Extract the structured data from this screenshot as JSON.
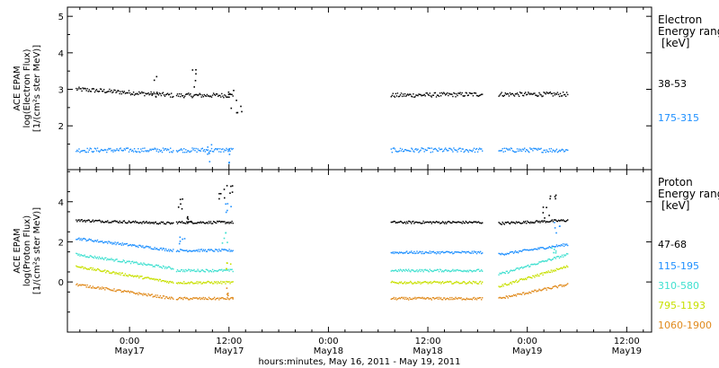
{
  "chart_data": [
    {
      "type": "scatter",
      "panel": "electron",
      "ylabel": [
        "ACE EPAM",
        "log(Electron Flux)",
        "[1/(cm²s ster MeV)]"
      ],
      "ylim": [
        0.8,
        5.25
      ],
      "yticks": [
        2,
        3,
        4,
        5
      ],
      "legend_title": [
        "Electron",
        "Energy ranges",
        "[keV]"
      ],
      "series": [
        {
          "name": "38-53",
          "color": "#000000",
          "segments": [
            [
              -6.5,
              5.2,
              3.02,
              2.85
            ],
            [
              5.6,
              12.4,
              2.85,
              2.85
            ],
            [
              31.5,
              42.5,
              2.85,
              2.88
            ],
            [
              44.5,
              52.8,
              2.88,
              2.88
            ]
          ],
          "spikes": [
            [
              3.0,
              3.4
            ],
            [
              7.8,
              3.6
            ],
            [
              12.2,
              3.05
            ],
            [
              13.2,
              2.8
            ]
          ]
        },
        {
          "name": "175-315",
          "color": "#1e90ff",
          "segments": [
            [
              -6.5,
              5.2,
              1.35,
              1.35
            ],
            [
              5.6,
              12.4,
              1.35,
              1.35
            ],
            [
              31.5,
              42.5,
              1.35,
              1.35
            ],
            [
              44.5,
              52.8,
              1.35,
              1.35
            ]
          ],
          "spikes": [
            [
              9.5,
              1.6
            ],
            [
              12.3,
              1.55
            ]
          ]
        }
      ]
    },
    {
      "type": "scatter",
      "panel": "proton",
      "ylabel": [
        "ACE EPAM",
        "log(Proton Flux)",
        "[1/(cm²s ster MeV)]"
      ],
      "ylim": [
        -2.5,
        5.6
      ],
      "yticks": [
        0,
        2,
        4
      ],
      "legend_title": [
        "Proton",
        "Energy ranges",
        "[keV]"
      ],
      "series": [
        {
          "name": "47-68",
          "color": "#000000",
          "segments": [
            [
              -6.5,
              5.2,
              3.1,
              2.95
            ],
            [
              5.6,
              12.4,
              3.0,
              3.0
            ],
            [
              31.5,
              42.5,
              3.0,
              3.0
            ],
            [
              44.5,
              52.8,
              2.95,
              3.1
            ]
          ],
          "spikes": [
            [
              6.0,
              4.2
            ],
            [
              7.0,
              3.4
            ],
            [
              11.0,
              4.7
            ],
            [
              12.0,
              5.0
            ],
            [
              51.0,
              4.5
            ],
            [
              50.2,
              3.8
            ]
          ]
        },
        {
          "name": "115-195",
          "color": "#1e90ff",
          "segments": [
            [
              -6.5,
              5.2,
              2.2,
              1.6
            ],
            [
              5.6,
              12.4,
              1.6,
              1.6
            ],
            [
              31.5,
              42.5,
              1.5,
              1.5
            ],
            [
              44.5,
              52.8,
              1.4,
              1.9
            ]
          ],
          "spikes": [
            [
              6.2,
              2.4
            ],
            [
              11.8,
              4.0
            ],
            [
              51.5,
              3.0
            ]
          ]
        },
        {
          "name": "310-580",
          "color": "#40e0d0",
          "segments": [
            [
              -6.5,
              5.2,
              1.4,
              0.7
            ],
            [
              5.6,
              12.4,
              0.6,
              0.6
            ],
            [
              31.5,
              42.5,
              0.6,
              0.6
            ],
            [
              44.5,
              52.8,
              0.4,
              1.4
            ]
          ],
          "spikes": [
            [
              11.5,
              2.5
            ],
            [
              51.2,
              1.8
            ]
          ]
        },
        {
          "name": "795-1193",
          "color": "#c8e000",
          "segments": [
            [
              -6.5,
              5.2,
              0.8,
              0.0
            ],
            [
              5.6,
              12.4,
              0.0,
              0.0
            ],
            [
              31.5,
              42.5,
              0.0,
              0.0
            ],
            [
              44.5,
              52.8,
              -0.2,
              0.8
            ]
          ],
          "spikes": [
            [
              11.8,
              1.0
            ]
          ]
        },
        {
          "name": "1060-1900",
          "color": "#e08a1c",
          "segments": [
            [
              -6.5,
              5.2,
              -0.1,
              -0.8
            ],
            [
              5.6,
              12.4,
              -0.8,
              -0.8
            ],
            [
              31.5,
              42.5,
              -0.8,
              -0.8
            ],
            [
              44.5,
              52.8,
              -0.8,
              -0.1
            ]
          ],
          "spikes": [
            [
              12.0,
              -0.2
            ]
          ]
        }
      ]
    }
  ],
  "x_axis": {
    "range_hours": [
      -7.5,
      63
    ],
    "ticks": [
      {
        "h": 0,
        "top": "0:00",
        "bottom": "May17"
      },
      {
        "h": 12,
        "top": "12:00",
        "bottom": "May17"
      },
      {
        "h": 24,
        "top": "0:00",
        "bottom": "May18"
      },
      {
        "h": 36,
        "top": "12:00",
        "bottom": "May18"
      },
      {
        "h": 48,
        "top": "0:00",
        "bottom": "May19"
      },
      {
        "h": 60,
        "top": "12:00",
        "bottom": "May19"
      }
    ],
    "label": "hours:minutes, May 16, 2011 - May 19, 2011"
  }
}
